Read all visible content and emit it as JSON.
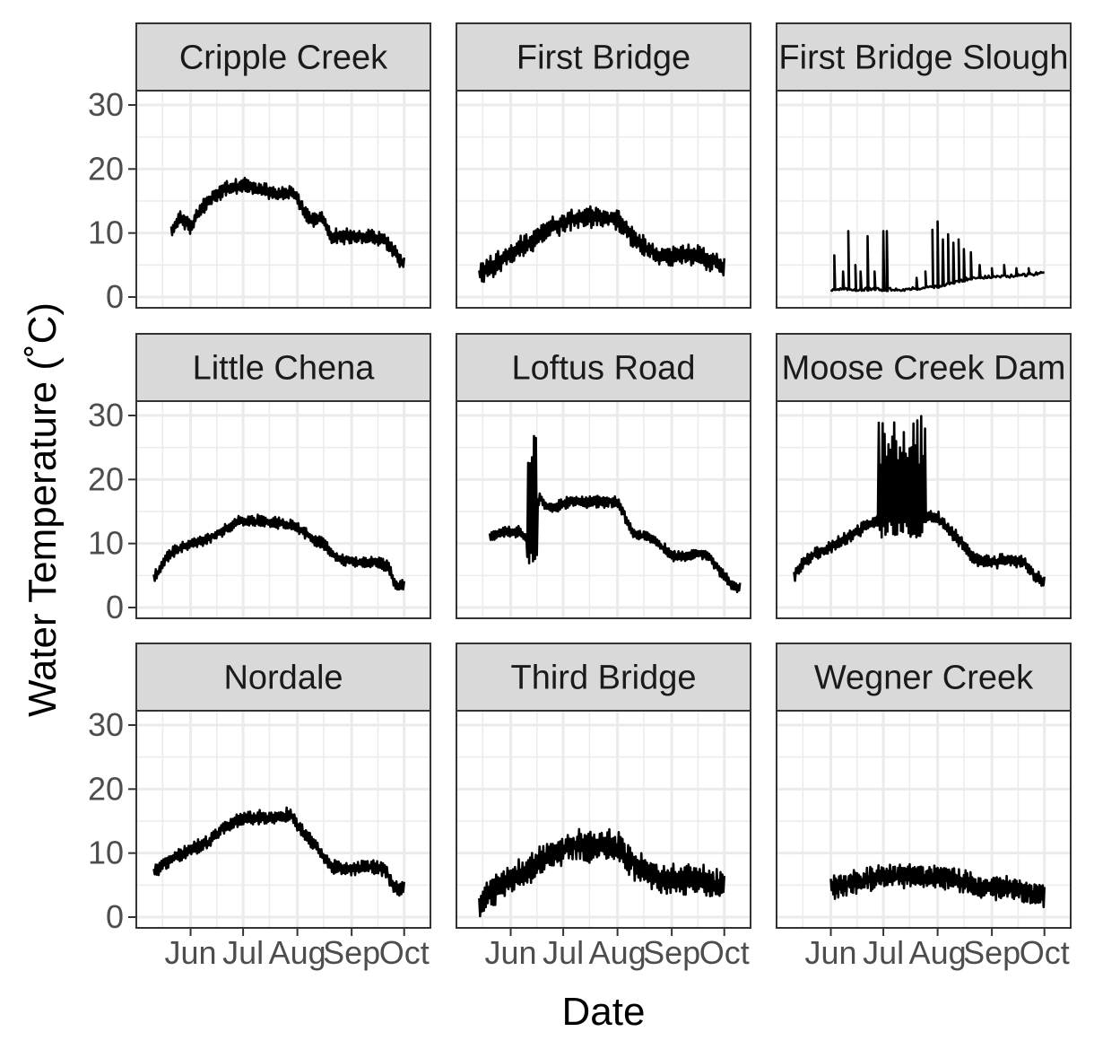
{
  "chart_data": {
    "type": "line",
    "xlabel": "Date",
    "ylabel": "Water Temperature (˚C)",
    "ylim": [
      0,
      30
    ],
    "y_ticks": [
      "0",
      "10",
      "20",
      "30"
    ],
    "x_ticks": [
      "Jun",
      "Jul",
      "Aug",
      "Sep",
      "Oct"
    ],
    "grid": "on",
    "colors": {
      "line": "#000000",
      "strip_fill": "#d9d9d9",
      "grid": "#ebebeb",
      "border": "#333333"
    },
    "panels": [
      {
        "name": "Cripple Creek",
        "style": "smooth",
        "amp": 1.0,
        "x": [
          "2019-05-21",
          "2019-05-26",
          "2019-06-01",
          "2019-06-08",
          "2019-06-15",
          "2019-06-22",
          "2019-07-01",
          "2019-07-08",
          "2019-07-15",
          "2019-07-22",
          "2019-07-29",
          "2019-08-01",
          "2019-08-05",
          "2019-08-10",
          "2019-08-15",
          "2019-08-20",
          "2019-09-01",
          "2019-09-10",
          "2019-09-20",
          "2019-09-28",
          "2019-10-01"
        ],
        "y": [
          10.5,
          12.5,
          11,
          14,
          16,
          17,
          17.5,
          17,
          16.5,
          16,
          16.5,
          15.5,
          13,
          12,
          12.5,
          9.5,
          9.5,
          9.5,
          9,
          6,
          5
        ]
      },
      {
        "name": "First Bridge",
        "style": "smooth",
        "amp": 1.5,
        "x": [
          "2019-05-14",
          "2019-05-25",
          "2019-06-05",
          "2019-06-15",
          "2019-06-25",
          "2019-07-05",
          "2019-07-15",
          "2019-07-25",
          "2019-08-01",
          "2019-08-08",
          "2019-08-15",
          "2019-08-25",
          "2019-09-05",
          "2019-09-15",
          "2019-09-25",
          "2019-10-01"
        ],
        "y": [
          3.5,
          5.5,
          7.5,
          9,
          11,
          12,
          12.5,
          12.5,
          12,
          10,
          8,
          6.5,
          6.5,
          6.5,
          5.5,
          4.5
        ]
      },
      {
        "name": "First Bridge Slough",
        "style": "spiky",
        "base": 1.0,
        "x": [
          "2019-06-01",
          "2019-07-15",
          "2019-08-05",
          "2019-08-20",
          "2019-09-15",
          "2019-10-01"
        ],
        "y": [
          1.2,
          1.2,
          1.8,
          3.0,
          3.3,
          3.8
        ],
        "spikes": [
          {
            "x": "2019-06-03",
            "y": 6.5
          },
          {
            "x": "2019-06-08",
            "y": 4
          },
          {
            "x": "2019-06-11",
            "y": 10.3
          },
          {
            "x": "2019-06-15",
            "y": 5
          },
          {
            "x": "2019-06-18",
            "y": 4
          },
          {
            "x": "2019-06-22",
            "y": 9.5
          },
          {
            "x": "2019-06-26",
            "y": 4
          },
          {
            "x": "2019-07-01",
            "y": 10.3
          },
          {
            "x": "2019-07-03",
            "y": 10.3
          },
          {
            "x": "2019-07-20",
            "y": 3
          },
          {
            "x": "2019-07-25",
            "y": 4
          },
          {
            "x": "2019-07-29",
            "y": 10.5
          },
          {
            "x": "2019-08-01",
            "y": 11.8
          },
          {
            "x": "2019-08-04",
            "y": 9
          },
          {
            "x": "2019-08-07",
            "y": 9.8
          },
          {
            "x": "2019-08-10",
            "y": 8.5
          },
          {
            "x": "2019-08-13",
            "y": 9
          },
          {
            "x": "2019-08-16",
            "y": 7.5
          },
          {
            "x": "2019-08-20",
            "y": 7
          },
          {
            "x": "2019-08-25",
            "y": 5
          },
          {
            "x": "2019-09-01",
            "y": 4.5
          },
          {
            "x": "2019-09-08",
            "y": 5
          },
          {
            "x": "2019-09-15",
            "y": 4.5
          },
          {
            "x": "2019-09-22",
            "y": 4.5
          }
        ]
      },
      {
        "name": "Little Chena",
        "style": "smooth",
        "amp": 0.8,
        "x": [
          "2019-05-11",
          "2019-05-20",
          "2019-06-01",
          "2019-06-10",
          "2019-06-20",
          "2019-06-28",
          "2019-07-05",
          "2019-07-15",
          "2019-07-25",
          "2019-08-01",
          "2019-08-08",
          "2019-08-15",
          "2019-08-25",
          "2019-09-05",
          "2019-09-15",
          "2019-09-22",
          "2019-09-26",
          "2019-10-01"
        ],
        "y": [
          4.5,
          8.5,
          10,
          10.5,
          12,
          13.5,
          13.5,
          13.5,
          13,
          12.5,
          11,
          10,
          7.5,
          7,
          7,
          6.5,
          3.5,
          3.5
        ]
      },
      {
        "name": "Loftus Road",
        "style": "smooth",
        "amp": 0.8,
        "x": [
          "2019-05-20",
          "2019-05-28",
          "2019-06-02",
          "2019-06-06",
          "2019-06-09",
          "2019-06-12",
          "2019-06-15",
          "2019-06-18",
          "2019-06-20",
          "2019-06-25",
          "2019-07-05",
          "2019-07-15",
          "2019-07-25",
          "2019-08-01",
          "2019-08-05",
          "2019-08-10",
          "2019-08-20",
          "2019-09-01",
          "2019-09-10",
          "2019-09-20",
          "2019-10-01",
          "2019-10-05",
          "2019-10-10"
        ],
        "y": [
          11,
          12,
          11.5,
          12,
          11,
          11,
          16,
          17,
          16,
          15.5,
          16.5,
          16.5,
          16.5,
          16.5,
          14.5,
          11.5,
          11,
          8,
          8,
          8.5,
          5,
          3.5,
          3
        ]
      },
      {
        "name": "Moose Creek Dam",
        "style": "smooth",
        "amp": 0.9,
        "x": [
          "2019-05-11",
          "2019-05-20",
          "2019-06-01",
          "2019-06-10",
          "2019-06-20",
          "2019-07-01",
          "2019-07-10",
          "2019-07-20",
          "2019-08-01",
          "2019-08-08",
          "2019-08-15",
          "2019-08-22",
          "2019-09-01",
          "2019-09-10",
          "2019-09-20",
          "2019-09-25",
          "2019-10-01"
        ],
        "y": [
          5,
          8,
          9.5,
          11,
          12.5,
          14,
          15,
          14.5,
          14,
          12,
          10,
          7.5,
          7,
          7.5,
          7,
          5,
          4
        ]
      },
      {
        "name": "Nordale",
        "style": "smooth",
        "amp": 1.0,
        "x": [
          "2019-05-11",
          "2019-05-20",
          "2019-06-01",
          "2019-06-10",
          "2019-06-20",
          "2019-07-01",
          "2019-07-10",
          "2019-07-20",
          "2019-07-28",
          "2019-08-01",
          "2019-08-05",
          "2019-08-12",
          "2019-08-20",
          "2019-09-01",
          "2019-09-10",
          "2019-09-20",
          "2019-09-25",
          "2019-10-01"
        ],
        "y": [
          7,
          9,
          10.5,
          11.5,
          14,
          15.5,
          15.5,
          15.5,
          16,
          14.5,
          13,
          11,
          8,
          7.5,
          8,
          7.5,
          4.5,
          4.5
        ]
      },
      {
        "name": "Third Bridge",
        "style": "smooth",
        "amp": 2.2,
        "x": [
          "2019-05-14",
          "2019-05-25",
          "2019-06-05",
          "2019-06-15",
          "2019-06-25",
          "2019-07-05",
          "2019-07-15",
          "2019-07-25",
          "2019-08-01",
          "2019-08-08",
          "2019-08-15",
          "2019-08-25",
          "2019-09-05",
          "2019-09-15",
          "2019-09-25",
          "2019-10-01"
        ],
        "y": [
          2,
          5,
          6.5,
          8,
          10,
          11,
          11,
          11.5,
          11,
          9,
          7.5,
          6,
          6,
          6,
          5,
          4.5
        ]
      },
      {
        "name": "Wegner Creek",
        "style": "smooth",
        "amp": 1.6,
        "x": [
          "2019-06-01",
          "2019-06-15",
          "2019-07-01",
          "2019-07-15",
          "2019-08-01",
          "2019-08-10",
          "2019-08-20",
          "2019-09-01",
          "2019-09-15",
          "2019-09-25",
          "2019-10-01"
        ],
        "y": [
          4.5,
          5.5,
          6.3,
          6.3,
          6.3,
          6,
          5,
          4.5,
          4.5,
          3.5,
          3.5
        ]
      }
    ],
    "annotations": [
      {
        "panel": "Loftus Road",
        "type": "spike_cluster",
        "x_range": [
          "2019-06-10",
          "2019-06-16"
        ],
        "max": 28,
        "min": 6.5
      },
      {
        "panel": "Moose Creek Dam",
        "type": "spike_cluster",
        "x_range": [
          "2019-06-28",
          "2019-07-25"
        ],
        "max": 30,
        "min": 10.5
      }
    ]
  }
}
